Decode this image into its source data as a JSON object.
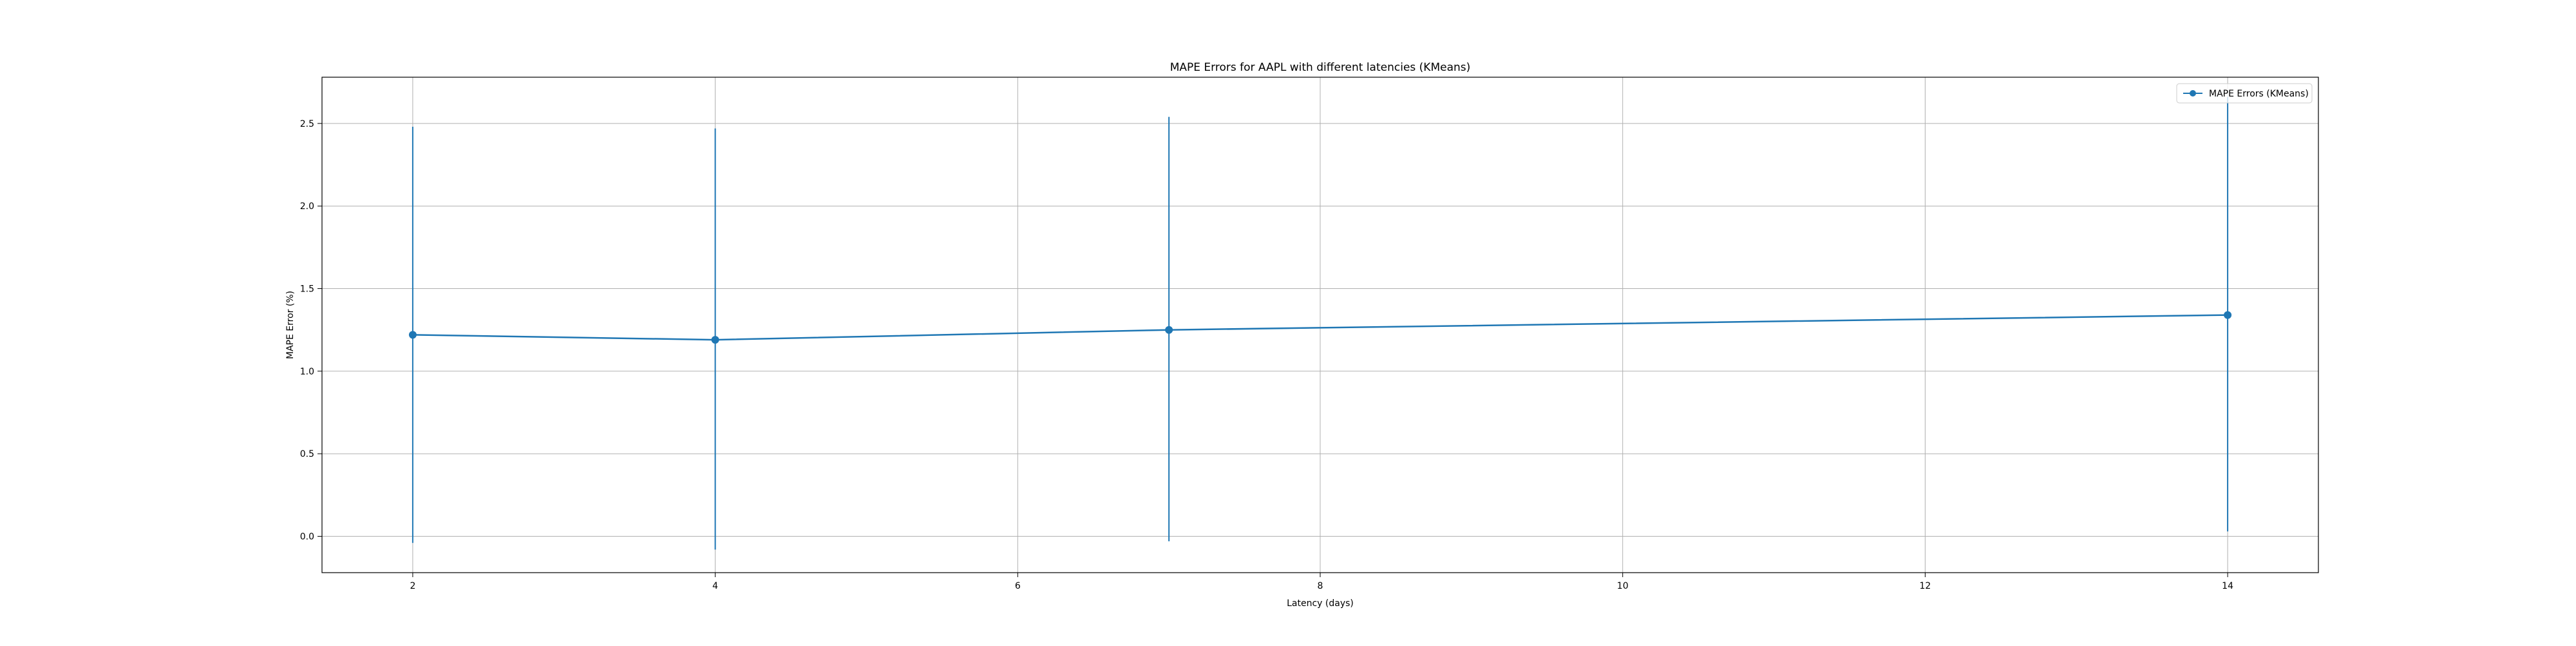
{
  "chart_data": {
    "type": "line",
    "title": "MAPE Errors for AAPL with different latencies (KMeans)",
    "xlabel": "Latency (days)",
    "ylabel": "MAPE Error (%)",
    "xlim": [
      1.4,
      14.6
    ],
    "ylim": [
      -0.22,
      2.78
    ],
    "xticks": [
      2,
      4,
      6,
      8,
      10,
      12,
      14
    ],
    "xtick_labels": [
      "2",
      "4",
      "6",
      "8",
      "10",
      "12",
      "14"
    ],
    "yticks": [
      0.0,
      0.5,
      1.0,
      1.5,
      2.0,
      2.5
    ],
    "ytick_labels": [
      "0.0",
      "0.5",
      "1.0",
      "1.5",
      "2.0",
      "2.5"
    ],
    "grid": true,
    "legend_position": "upper right",
    "series": [
      {
        "name": "MAPE Errors (KMeans)",
        "color": "#1f77b4",
        "marker": "circle",
        "x": [
          2,
          4,
          7,
          14
        ],
        "y": [
          1.22,
          1.19,
          1.25,
          1.34
        ],
        "error_low": [
          -0.04,
          -0.08,
          -0.03,
          0.03
        ],
        "error_high": [
          2.48,
          2.47,
          2.54,
          2.66
        ]
      }
    ]
  }
}
